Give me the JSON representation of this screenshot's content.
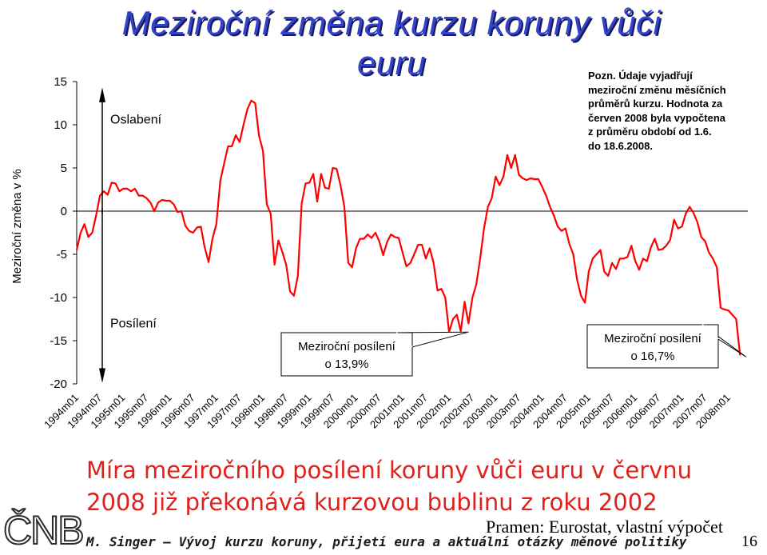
{
  "slide": {
    "title_line1": "Meziroční změna kurzu koruny vůči",
    "title_line2": "euru",
    "note_lines": [
      "Pozn. Údaje vyjadřují",
      "meziroční změnu měsíčních",
      "průměrů kurzu. Hodnota za",
      "červen 2008 byla vypočtena",
      "z průměru období od 1.6.",
      "do 18.6.2008."
    ],
    "headline_line1": "Míra meziročního posílení koruny vůči euru v červnu",
    "headline_line2": "2008 již překonává kurzovou bublinu z roku 2002",
    "source": "Pramen: Eurostat, vlastní výpočet",
    "footer": "M. Singer – Vývoj kurzu koruny, přijetí eura a aktuální otázky měnové politiky",
    "page_number": "16",
    "logo_text": "ČNB"
  },
  "chart_data": {
    "type": "line",
    "ylabel": "Meziroční změna v %",
    "ylim": [
      -20,
      15
    ],
    "yticks": [
      15,
      10,
      5,
      0,
      -5,
      -10,
      -15,
      -20
    ],
    "xtick_labels": [
      "1994m01",
      "1994m07",
      "1995m01",
      "1995m07",
      "1996m01",
      "1996m07",
      "1997m01",
      "1997m07",
      "1998m01",
      "1998m07",
      "1999m01",
      "1999m07",
      "2000m01",
      "2000m07",
      "2001m01",
      "2001m07",
      "2002m01",
      "2002m07",
      "2003m01",
      "2003m07",
      "2004m01",
      "2004m07",
      "2005m01",
      "2005m07",
      "2006m01",
      "2006m07",
      "2007m01",
      "2007m07",
      "2008m01"
    ],
    "line_color": "#ff0000",
    "annotations": {
      "appreciation_side": "Oslabení",
      "depreciation_side": "Posílení",
      "callout_2002": [
        "Meziroční posílení",
        "o 13,9%"
      ],
      "callout_2008": [
        "Meziroční posílení",
        "o 16,7%"
      ]
    },
    "start": "1994m01",
    "end": "2008m06",
    "series": [
      {
        "values": [
          -4.5,
          -2.5,
          -1.5,
          -3.0,
          -2.5,
          -0.5,
          1.8,
          2.3,
          1.9,
          3.3,
          3.2,
          2.3,
          2.6,
          2.6,
          2.3,
          2.6,
          1.8,
          1.8,
          1.5,
          1.0,
          0.0,
          1.0,
          1.3,
          1.2,
          1.2,
          0.8,
          -0.1,
          0.0,
          -1.7,
          -2.3,
          -2.5,
          -1.9,
          -1.8,
          -4.2,
          -5.9,
          -3.2,
          -1.5,
          3.5,
          5.5,
          7.5,
          7.5,
          8.8,
          8.0,
          10.0,
          11.8,
          12.8,
          12.5,
          8.7,
          7.0,
          0.8,
          -0.3,
          -6.2,
          -3.4,
          -4.7,
          -6.2,
          -9.3,
          -9.8,
          -7.5,
          0.9,
          3.2,
          3.3,
          4.3,
          1.1,
          4.3,
          2.7,
          2.6,
          5.0,
          4.9,
          3.0,
          0.5,
          -6.0,
          -6.5,
          -4.3,
          -3.2,
          -3.2,
          -2.7,
          -3.1,
          -2.5,
          -3.5,
          -5.1,
          -3.6,
          -2.7,
          -3.0,
          -3.1,
          -4.8,
          -6.4,
          -6.0,
          -5.0,
          -3.9,
          -3.9,
          -5.5,
          -4.3,
          -6.0,
          -9.2,
          -9.0,
          -10.0,
          -14.0,
          -12.5,
          -12.0,
          -13.9,
          -10.5,
          -13.0,
          -10.0,
          -8.5,
          -5.5,
          -2.0,
          0.5,
          1.5,
          4.0,
          3.0,
          4.0,
          6.5,
          5.0,
          6.5,
          4.2,
          3.8,
          3.6,
          3.8,
          3.7,
          3.7,
          2.8,
          1.8,
          0.5,
          -0.5,
          -1.8,
          -2.3,
          -2.0,
          -3.8,
          -5.0,
          -8.0,
          -9.8,
          -10.6,
          -7.0,
          -5.5,
          -5.0,
          -4.5,
          -7.0,
          -7.5,
          -6.0,
          -6.7,
          -5.5,
          -5.5,
          -5.3,
          -4.0,
          -5.8,
          -6.8,
          -5.5,
          -5.8,
          -4.2,
          -3.2,
          -4.5,
          -4.4,
          -4.0,
          -3.3,
          -1.0,
          -2.0,
          -1.8,
          -0.3,
          0.5,
          -0.2,
          -1.3,
          -3.0,
          -3.5,
          -4.8,
          -5.5,
          -6.5,
          -11.2,
          -11.4,
          -11.5,
          -12.0,
          -12.5,
          -16.7
        ]
      }
    ]
  }
}
